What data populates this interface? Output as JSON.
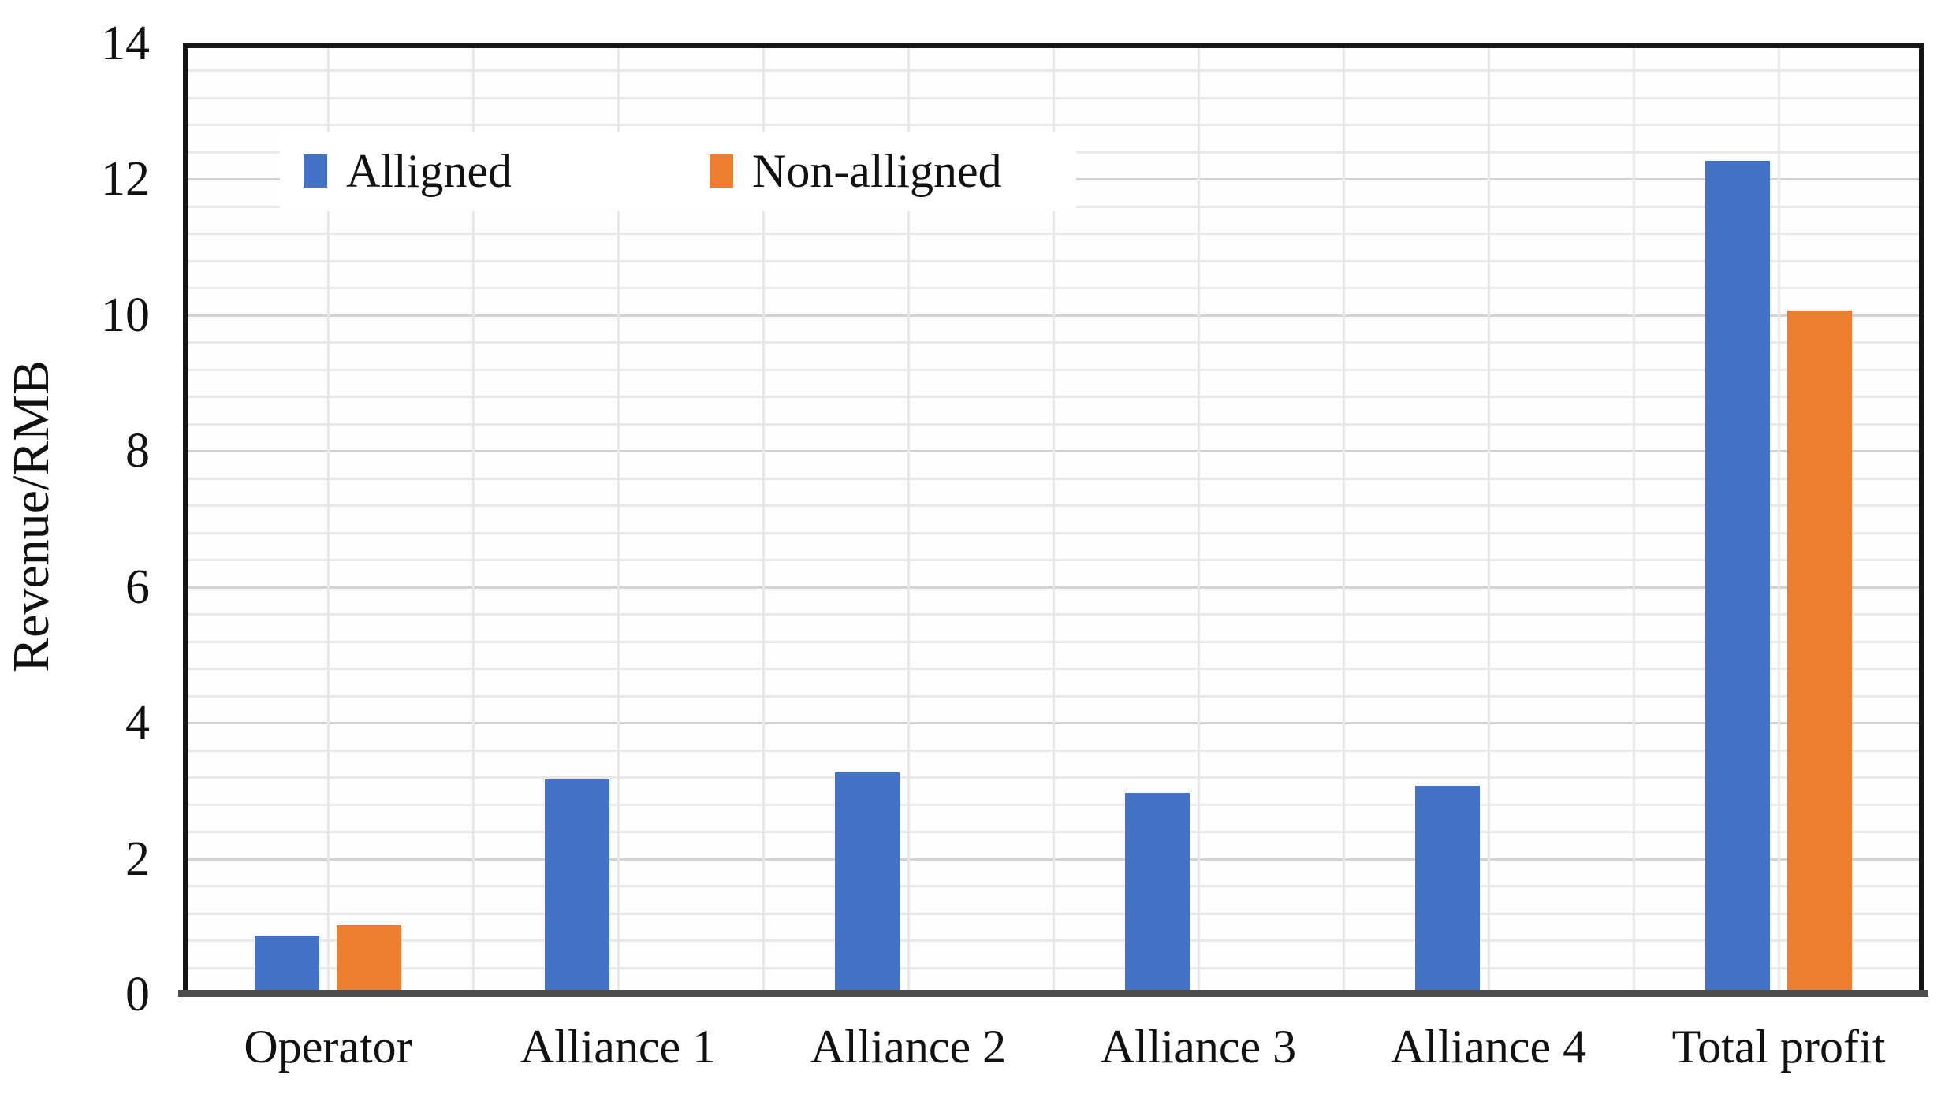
{
  "chart_data": {
    "type": "bar",
    "title": "",
    "xlabel": "",
    "ylabel": "Revenue/RMB",
    "ylim": [
      0,
      14
    ],
    "yticks": [
      0,
      2,
      4,
      6,
      8,
      10,
      12,
      14
    ],
    "ytick_major_step": 2,
    "minor_grid_step": 0.4,
    "grid": true,
    "legend_position": "inside-top-left",
    "categories": [
      "Operator",
      "Alliance 1",
      "Alliance 2",
      "Alliance 3",
      "Alliance 4",
      "Total profit"
    ],
    "series": [
      {
        "name": "Alligned",
        "color": "#4472C4",
        "values": [
          0.8,
          3.1,
          3.2,
          2.9,
          3.0,
          12.2
        ]
      },
      {
        "name": "Non-alligned",
        "color": "#ED7D31",
        "values": [
          0.95,
          null,
          null,
          null,
          null,
          10.0
        ]
      }
    ]
  }
}
